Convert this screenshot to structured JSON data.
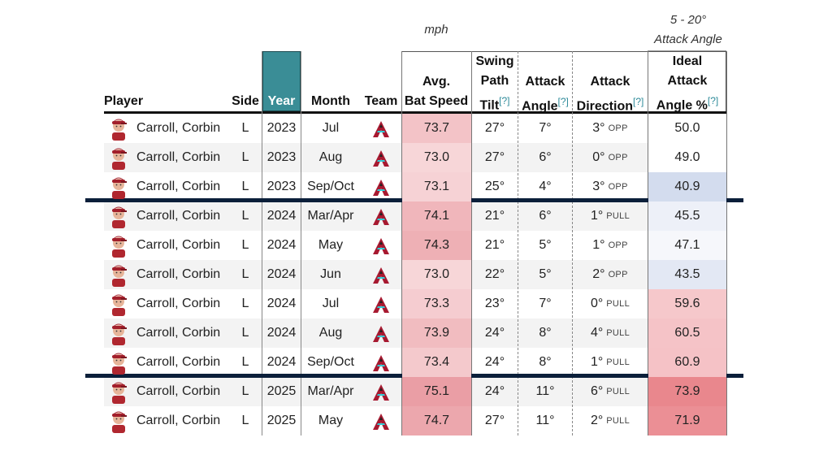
{
  "top_labels": {
    "mph": "mph",
    "range": "5 - 20°",
    "range_sub": "Attack Angle"
  },
  "headers": {
    "player": "Player",
    "side": "Side",
    "year": "Year",
    "month": "Month",
    "team": "Team",
    "bat_speed": [
      "Avg.",
      "Bat Speed"
    ],
    "tilt": [
      "Swing",
      "Path",
      "Tilt"
    ],
    "attack_angle": [
      "Attack",
      "Angle"
    ],
    "attack_direction": [
      "Attack",
      "Direction"
    ],
    "ideal": [
      "Ideal",
      "Attack",
      "Angle %"
    ],
    "help": "[?]"
  },
  "colors": {
    "year_header": "#3a8d96",
    "year_col": "#e0e0e0",
    "divider": "#0b1f3a",
    "link": "#2e8b9a"
  },
  "rows": [
    {
      "player": "Carroll, Corbin",
      "side": "L",
      "year": "2023",
      "month": "Jul",
      "bat_speed": "73.7",
      "bat_color": "#f3c3c7",
      "tilt": "27°",
      "attack_angle": "7°",
      "dir_deg": "3°",
      "dir": "OPP",
      "ideal": "50.0",
      "ideal_color": "#ffffff"
    },
    {
      "player": "Carroll, Corbin",
      "side": "L",
      "year": "2023",
      "month": "Aug",
      "bat_speed": "73.0",
      "bat_color": "#f7d6d8",
      "tilt": "27°",
      "attack_angle": "6°",
      "dir_deg": "0°",
      "dir": "OPP",
      "ideal": "49.0",
      "ideal_color": "#ffffff"
    },
    {
      "player": "Carroll, Corbin",
      "side": "L",
      "year": "2023",
      "month": "Sep/Oct",
      "bat_speed": "73.1",
      "bat_color": "#f6d2d5",
      "tilt": "25°",
      "attack_angle": "4°",
      "dir_deg": "3°",
      "dir": "OPP",
      "ideal": "40.9",
      "ideal_color": "#d3dcee"
    },
    {
      "player": "Carroll, Corbin",
      "side": "L",
      "year": "2024",
      "month": "Mar/Apr",
      "bat_speed": "74.1",
      "bat_color": "#f0b6bb",
      "tilt": "21°",
      "attack_angle": "6°",
      "dir_deg": "1°",
      "dir": "PULL",
      "ideal": "45.5",
      "ideal_color": "#edf0f8"
    },
    {
      "player": "Carroll, Corbin",
      "side": "L",
      "year": "2024",
      "month": "May",
      "bat_speed": "74.3",
      "bat_color": "#eeb0b5",
      "tilt": "21°",
      "attack_angle": "5°",
      "dir_deg": "1°",
      "dir": "OPP",
      "ideal": "47.1",
      "ideal_color": "#f6f7fb"
    },
    {
      "player": "Carroll, Corbin",
      "side": "L",
      "year": "2024",
      "month": "Jun",
      "bat_speed": "73.0",
      "bat_color": "#f7d6d8",
      "tilt": "22°",
      "attack_angle": "5°",
      "dir_deg": "2°",
      "dir": "OPP",
      "ideal": "43.5",
      "ideal_color": "#e3e8f4"
    },
    {
      "player": "Carroll, Corbin",
      "side": "L",
      "year": "2024",
      "month": "Jul",
      "bat_speed": "73.3",
      "bat_color": "#f5ccd0",
      "tilt": "23°",
      "attack_angle": "7°",
      "dir_deg": "0°",
      "dir": "PULL",
      "ideal": "59.6",
      "ideal_color": "#f6c8cb"
    },
    {
      "player": "Carroll, Corbin",
      "side": "L",
      "year": "2024",
      "month": "Aug",
      "bat_speed": "73.9",
      "bat_color": "#f1bcc0",
      "tilt": "24°",
      "attack_angle": "8°",
      "dir_deg": "4°",
      "dir": "PULL",
      "ideal": "60.5",
      "ideal_color": "#f5c3c7"
    },
    {
      "player": "Carroll, Corbin",
      "side": "L",
      "year": "2024",
      "month": "Sep/Oct",
      "bat_speed": "73.4",
      "bat_color": "#f4c9cc",
      "tilt": "24°",
      "attack_angle": "8°",
      "dir_deg": "1°",
      "dir": "PULL",
      "ideal": "60.9",
      "ideal_color": "#f5c2c6"
    },
    {
      "player": "Carroll, Corbin",
      "side": "L",
      "year": "2025",
      "month": "Mar/Apr",
      "bat_speed": "75.1",
      "bat_color": "#ea9ea5",
      "tilt": "24°",
      "attack_angle": "11°",
      "dir_deg": "6°",
      "dir": "PULL",
      "ideal": "73.9",
      "ideal_color": "#e9878d"
    },
    {
      "player": "Carroll, Corbin",
      "side": "L",
      "year": "2025",
      "month": "May",
      "bat_speed": "74.7",
      "bat_color": "#eca7ad",
      "tilt": "27°",
      "attack_angle": "11°",
      "dir_deg": "2°",
      "dir": "PULL",
      "ideal": "71.9",
      "ideal_color": "#eb8f95"
    }
  ]
}
